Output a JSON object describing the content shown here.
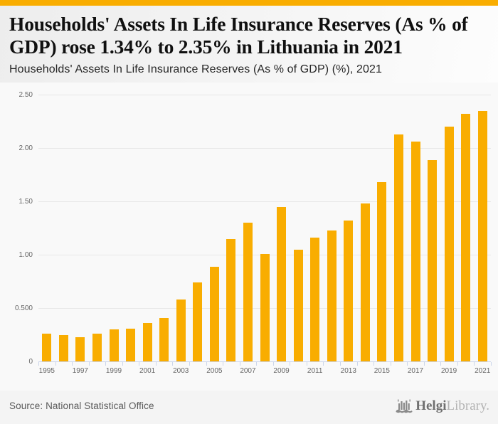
{
  "accent_color": "#F9AD00",
  "chart_data": {
    "type": "bar",
    "title": "Households' Assets In Life Insurance Reserves (As % of GDP) rose 1.34% to 2.35% in Lithuania in 2021",
    "subtitle": "Households' Assets In Life Insurance Reserves (As % of GDP) (%), 2021",
    "categories": [
      1995,
      1996,
      1997,
      1998,
      1999,
      2000,
      2001,
      2002,
      2003,
      2004,
      2005,
      2006,
      2007,
      2008,
      2009,
      2010,
      2011,
      2012,
      2013,
      2014,
      2015,
      2016,
      2017,
      2018,
      2019,
      2020,
      2021
    ],
    "values": [
      0.26,
      0.25,
      0.23,
      0.26,
      0.3,
      0.31,
      0.36,
      0.41,
      0.58,
      0.74,
      0.89,
      1.15,
      1.3,
      1.01,
      1.45,
      1.05,
      1.16,
      1.23,
      1.32,
      1.48,
      1.68,
      2.13,
      2.06,
      1.89,
      2.2,
      2.32,
      2.35
    ],
    "xlabel": "",
    "ylabel": "",
    "ylim": [
      0,
      2.5
    ],
    "y_ticks": [
      {
        "value": 0,
        "label": "0"
      },
      {
        "value": 0.5,
        "label": "0.500"
      },
      {
        "value": 1.0,
        "label": "1.00"
      },
      {
        "value": 1.5,
        "label": "1.50"
      },
      {
        "value": 2.0,
        "label": "2.00"
      },
      {
        "value": 2.5,
        "label": "2.50"
      }
    ],
    "x_tick_labels": [
      "1995",
      "1997",
      "1999",
      "2001",
      "2003",
      "2005",
      "2007",
      "2009",
      "2011",
      "2013",
      "2015",
      "2017",
      "2019",
      "2021"
    ],
    "bar_color": "#F9AD00",
    "grid": true,
    "legend_position": "none"
  },
  "footer": {
    "source": "Source: National Statistical Office",
    "logo": {
      "icon": "helgi-castle-icon",
      "brand_bold": "Helgi",
      "brand_light": "Library."
    }
  }
}
